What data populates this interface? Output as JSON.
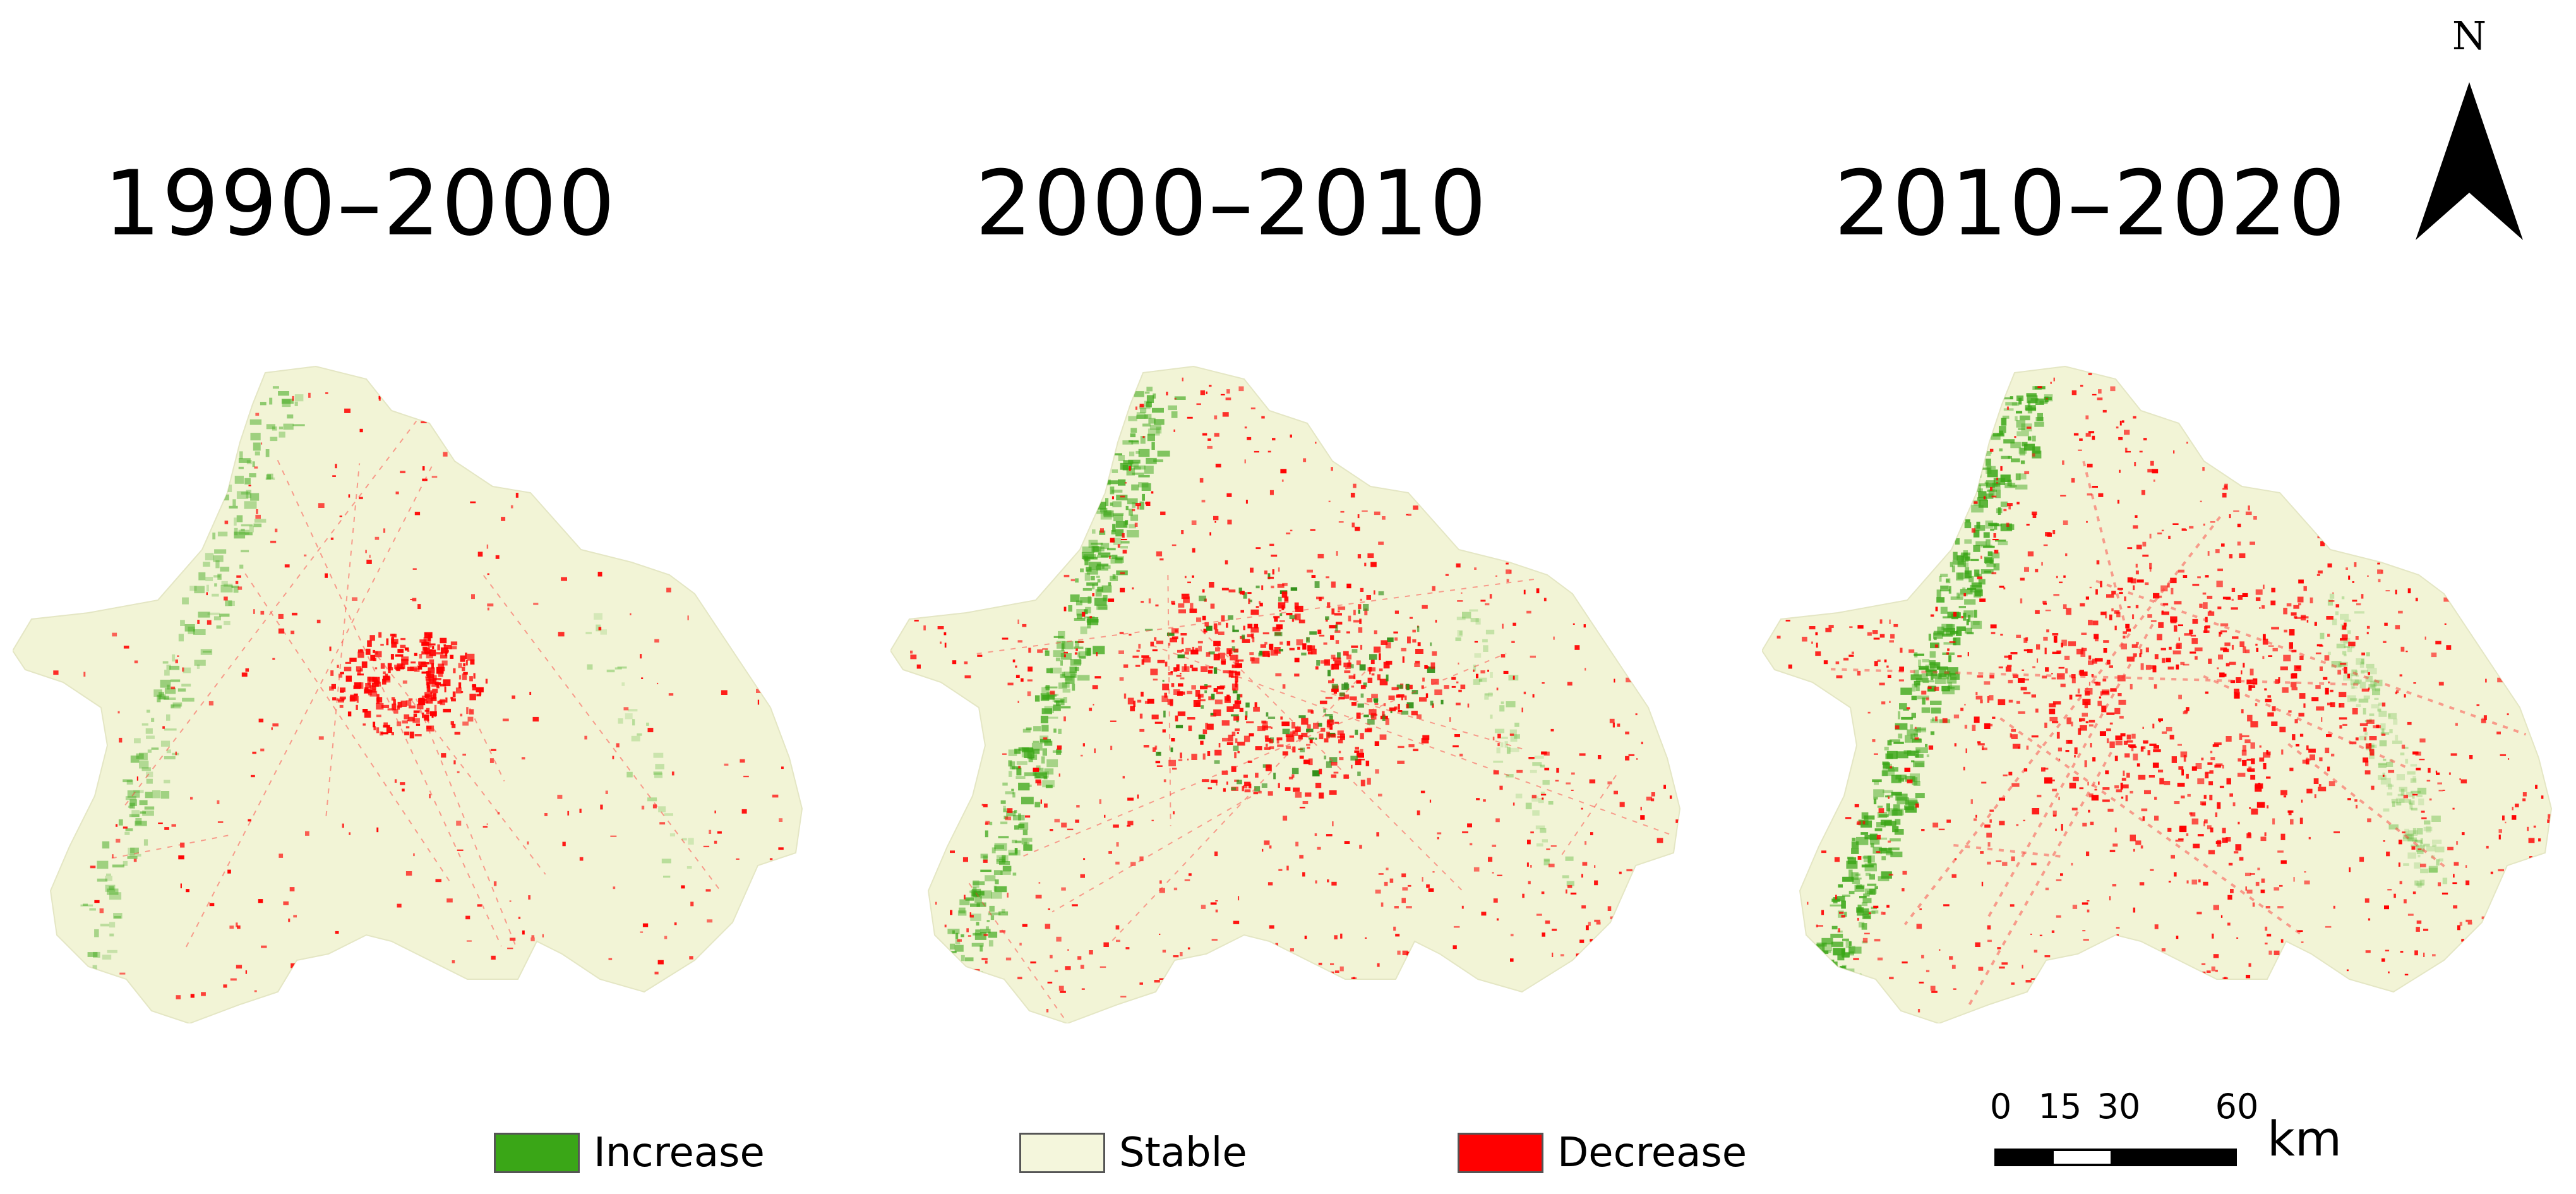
{
  "panels": [
    {
      "title": "1990–2000"
    },
    {
      "title": "2000–2010"
    },
    {
      "title": "2010–2020"
    }
  ],
  "north": {
    "label": "N"
  },
  "legend": [
    {
      "label": "Increase",
      "color": "#3aa617"
    },
    {
      "label": "Stable",
      "color": "#f4f6dc"
    },
    {
      "label": "Decrease",
      "color": "#ff0000"
    }
  ],
  "scale_bar": {
    "ticks": [
      "0",
      "15",
      "30",
      "60"
    ],
    "unit": "km"
  },
  "colors": {
    "region_fill": "#f2f4d6",
    "increase": "#3aa617",
    "decrease": "#ff0000"
  }
}
